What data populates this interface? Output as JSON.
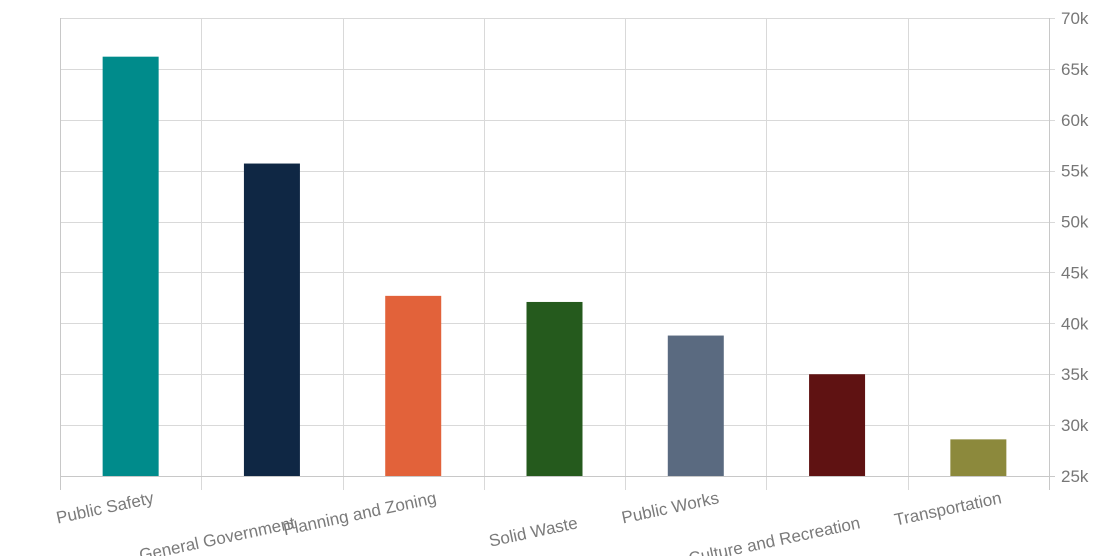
{
  "chart_data": {
    "type": "bar",
    "categories": [
      "Public Safety",
      "General Government",
      "Planning and Zoning",
      "Solid Waste",
      "Public Works",
      "Culture and Recreation",
      "Transportation"
    ],
    "values": [
      66200,
      55700,
      42700,
      42100,
      38800,
      35000,
      28600
    ],
    "colors": [
      "#008b8b",
      "#0f2744",
      "#e2623a",
      "#255a1d",
      "#5a6a80",
      "#5f1212",
      "#8c893c"
    ],
    "ylim": [
      25000,
      70000
    ],
    "yticks": [
      25000,
      30000,
      35000,
      40000,
      45000,
      50000,
      55000,
      60000,
      65000,
      70000
    ],
    "ytick_labels": [
      "25k",
      "30k",
      "35k",
      "40k",
      "45k",
      "50k",
      "55k",
      "60k",
      "65k",
      "70k"
    ],
    "y_axis_side": "right",
    "xtick_rotation_deg": -12,
    "grid": true,
    "legend": false
  }
}
